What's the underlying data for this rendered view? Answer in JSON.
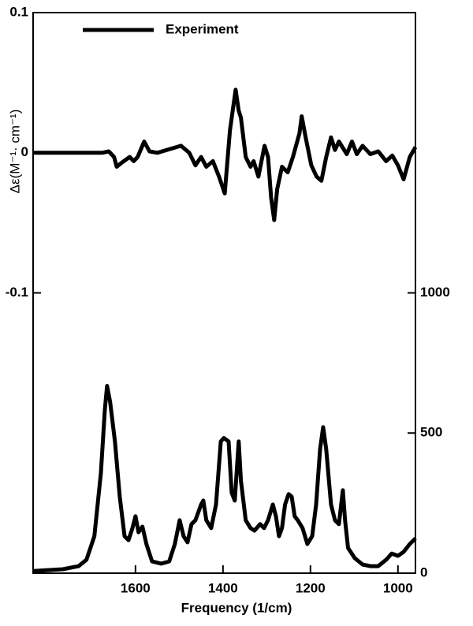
{
  "chart_data": {
    "type": "line",
    "y_label": "Δε(M⁻¹· cm⁻¹)",
    "x_label": "Frequency (1/cm)",
    "xlim": [
      1834,
      960
    ],
    "xticks": [
      1600,
      1400,
      1200,
      1000
    ],
    "ylim": [
      -0.3,
      0.1
    ],
    "yticks": [
      0.1,
      0,
      -0.1
    ],
    "y2lim": [
      0,
      2000
    ],
    "y2ticks": [
      0,
      500,
      1000
    ],
    "legend": "upper left",
    "series": [
      {
        "name": "Experiment",
        "color": "#000000",
        "axis": "y",
        "x": [
          1834,
          1676,
          1661,
          1649,
          1643,
          1631,
          1613,
          1604,
          1595,
          1580,
          1568,
          1550,
          1496,
          1477,
          1463,
          1450,
          1438,
          1423,
          1409,
          1396,
          1384,
          1371,
          1364,
          1359,
          1348,
          1337,
          1330,
          1319,
          1305,
          1297,
          1290,
          1283,
          1276,
          1265,
          1252,
          1240,
          1225,
          1220,
          1211,
          1198,
          1186,
          1175,
          1164,
          1153,
          1144,
          1135,
          1117,
          1105,
          1094,
          1081,
          1063,
          1045,
          1027,
          1013,
          1000,
          987,
          973,
          960
        ],
        "values": [
          0,
          0,
          0.001,
          -0.003,
          -0.01,
          -0.007,
          -0.003,
          -0.006,
          -0.003,
          0.008,
          0.001,
          0,
          0.005,
          0,
          -0.009,
          -0.003,
          -0.01,
          -0.006,
          -0.017,
          -0.029,
          0.016,
          0.045,
          0.03,
          0.025,
          -0.003,
          -0.01,
          -0.006,
          -0.017,
          0.005,
          -0.003,
          -0.032,
          -0.048,
          -0.026,
          -0.01,
          -0.014,
          -0.003,
          0.014,
          0.026,
          0.011,
          -0.009,
          -0.017,
          -0.02,
          -0.003,
          0.011,
          0.002,
          0.008,
          -0.001,
          0.008,
          -0.001,
          0.005,
          -0.001,
          0.001,
          -0.006,
          -0.002,
          -0.009,
          -0.019,
          -0.003,
          0.004
        ]
      },
      {
        "color": "#000000",
        "axis": "y2",
        "x": [
          1834,
          1766,
          1730,
          1712,
          1694,
          1679,
          1670,
          1665,
          1658,
          1647,
          1636,
          1625,
          1616,
          1607,
          1600,
          1593,
          1584,
          1575,
          1562,
          1541,
          1523,
          1510,
          1499,
          1490,
          1481,
          1472,
          1463,
          1450,
          1445,
          1438,
          1427,
          1416,
          1405,
          1398,
          1387,
          1380,
          1373,
          1364,
          1359,
          1348,
          1337,
          1328,
          1315,
          1306,
          1297,
          1286,
          1279,
          1272,
          1265,
          1258,
          1250,
          1243,
          1236,
          1229,
          1218,
          1207,
          1196,
          1187,
          1178,
          1171,
          1164,
          1153,
          1144,
          1135,
          1126,
          1121,
          1114,
          1099,
          1081,
          1063,
          1045,
          1027,
          1014,
          1000,
          987,
          973,
          960
        ],
        "values": [
          8,
          14,
          25,
          48,
          132,
          358,
          583,
          668,
          611,
          470,
          273,
          132,
          118,
          161,
          203,
          146,
          166,
          104,
          42,
          34,
          42,
          104,
          189,
          132,
          110,
          175,
          189,
          245,
          259,
          189,
          161,
          245,
          470,
          482,
          470,
          287,
          259,
          470,
          330,
          189,
          161,
          152,
          175,
          161,
          189,
          245,
          203,
          132,
          161,
          245,
          282,
          273,
          203,
          189,
          161,
          104,
          132,
          245,
          442,
          521,
          442,
          245,
          189,
          175,
          296,
          189,
          90,
          54,
          31,
          25,
          25,
          48,
          70,
          62,
          76,
          104,
          124
        ]
      }
    ]
  }
}
